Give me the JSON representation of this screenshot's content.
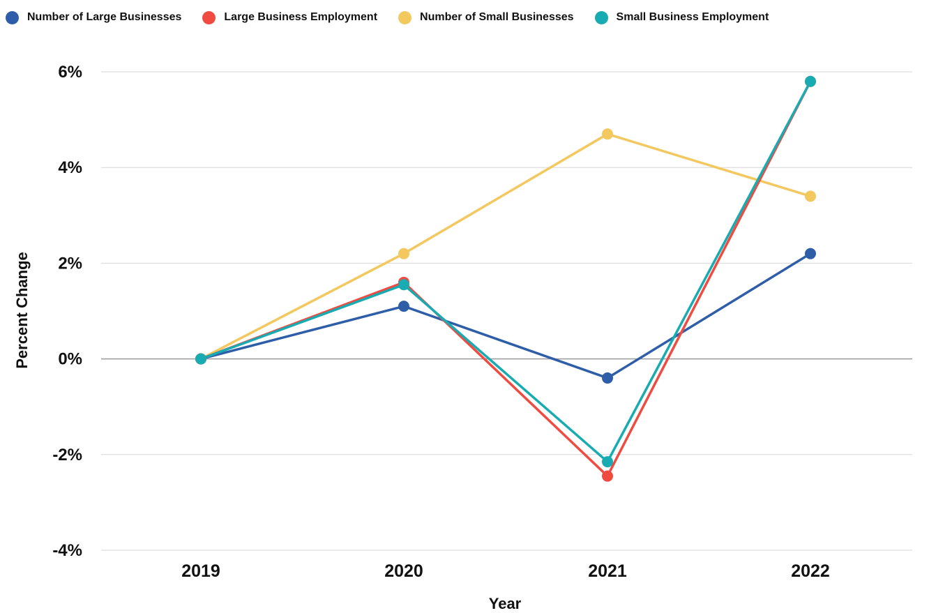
{
  "chart_data": {
    "type": "line",
    "categories": [
      "2019",
      "2020",
      "2021",
      "2022"
    ],
    "series": [
      {
        "name": "Number of Large Businesses",
        "color": "#2f5ea8",
        "values": [
          0,
          1.1,
          -0.4,
          2.2
        ]
      },
      {
        "name": "Large Business Employment",
        "color": "#f04b40",
        "values": [
          0,
          1.6,
          -2.45,
          5.8
        ]
      },
      {
        "name": "Number of Small Businesses",
        "color": "#f2c85f",
        "values": [
          0,
          2.2,
          4.7,
          3.4
        ]
      },
      {
        "name": "Small Business Employment",
        "color": "#18abb2",
        "values": [
          0,
          1.55,
          -2.15,
          5.8
        ]
      }
    ],
    "yticks": [
      -4,
      -2,
      0,
      2,
      4,
      6
    ],
    "ytick_labels": [
      "-4%",
      "-2%",
      "0%",
      "2%",
      "4%",
      "6%"
    ],
    "xlabel": "Year",
    "ylabel": "Percent Change",
    "ylim": [
      -4,
      6
    ],
    "grid": true,
    "legend": "top-left"
  }
}
